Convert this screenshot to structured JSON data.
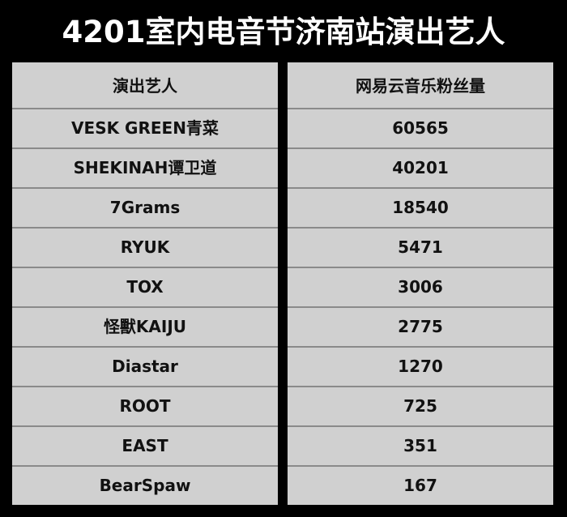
{
  "title": "4201室内电音节济南站演出艺人",
  "table": {
    "headers": [
      "演出艺人",
      "网易云音乐粉丝量"
    ],
    "rows": [
      {
        "artist": "VESK GREEN青菜",
        "fans": "60565"
      },
      {
        "artist": "SHEKINAH谭卫道",
        "fans": "40201"
      },
      {
        "artist": "7Grams",
        "fans": "18540"
      },
      {
        "artist": "RYUK",
        "fans": "5471"
      },
      {
        "artist": "TOX",
        "fans": "3006"
      },
      {
        "artist": "怪獸KAIJU",
        "fans": "2775"
      },
      {
        "artist": "Diastar",
        "fans": "1270"
      },
      {
        "artist": "ROOT",
        "fans": "725"
      },
      {
        "artist": "EAST",
        "fans": "351"
      },
      {
        "artist": "BearSpaw",
        "fans": "167"
      }
    ]
  }
}
